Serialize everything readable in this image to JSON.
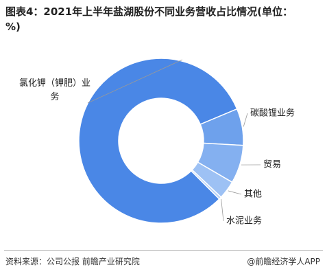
{
  "chart_data": {
    "type": "pie",
    "title": "图表4：2021年上半年盐湖股份不同业务营收占比情况(单位：%)",
    "categories": [
      "氯化钾（钾肥）业务",
      "碳酸锂业务",
      "贸易",
      "其他",
      "水泥业务"
    ],
    "values": [
      81.2,
      7.2,
      7.5,
      3.6,
      0.5
    ],
    "colors": [
      "#4a87e6",
      "#6ea1ec",
      "#84b0f0",
      "#9dc1f4",
      "#b6d1f6"
    ],
    "source": "资料来源：公司公报 前瞻产业研究院",
    "brand": "@前瞻经济学人APP"
  }
}
